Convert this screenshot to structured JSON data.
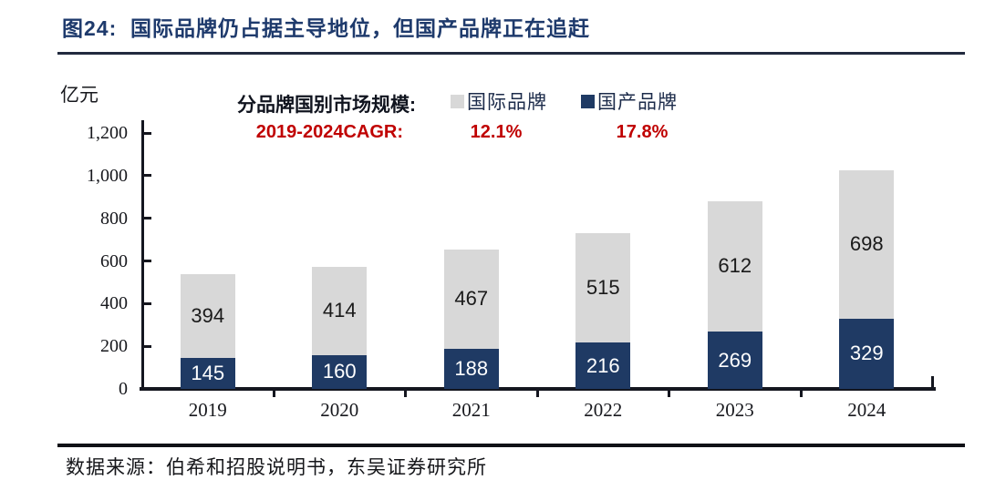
{
  "figure": {
    "title": "图24:  国际品牌仍占据主导地位，但国产品牌正在追赶",
    "source": "数据来源：伯希和招股说明书，东吴证券研究所"
  },
  "legend": {
    "prefix": "分品牌国别市场规模:",
    "items": [
      {
        "label": "国际品牌",
        "color": "#d8d8d8"
      },
      {
        "label": "国产品牌",
        "color": "#1f3a64"
      }
    ],
    "cagr_label": "2019-2024CAGR:",
    "cagr_values": [
      "12.1%",
      "17.8%"
    ],
    "cagr_color": "#c00000"
  },
  "chart_data": {
    "type": "bar",
    "stacked": true,
    "title": "分品牌国别市场规模",
    "unit": "亿元",
    "ylabel": "亿元",
    "categories": [
      "2019",
      "2020",
      "2021",
      "2022",
      "2023",
      "2024"
    ],
    "series": [
      {
        "name": "国产品牌",
        "color": "#1f3a64",
        "text_color": "#ffffff",
        "values": [
          145,
          160,
          188,
          216,
          269,
          329
        ],
        "cagr_2019_2024": "17.8%"
      },
      {
        "name": "国际品牌",
        "color": "#d8d8d8",
        "text_color": "#1a1a1a",
        "values": [
          394,
          414,
          467,
          515,
          612,
          698
        ],
        "cagr_2019_2024": "12.1%"
      }
    ],
    "totals": [
      539,
      574,
      655,
      731,
      881,
      1027
    ],
    "ylim": [
      0,
      1200
    ],
    "yticks": [
      {
        "value": 0,
        "label": "0"
      },
      {
        "value": 200,
        "label": "200"
      },
      {
        "value": 400,
        "label": "400"
      },
      {
        "value": 600,
        "label": "600"
      },
      {
        "value": 800,
        "label": "800"
      },
      {
        "value": 1000,
        "label": "1,000"
      },
      {
        "value": 1200,
        "label": "1,200"
      }
    ],
    "grid": false,
    "legend_position": "top"
  }
}
